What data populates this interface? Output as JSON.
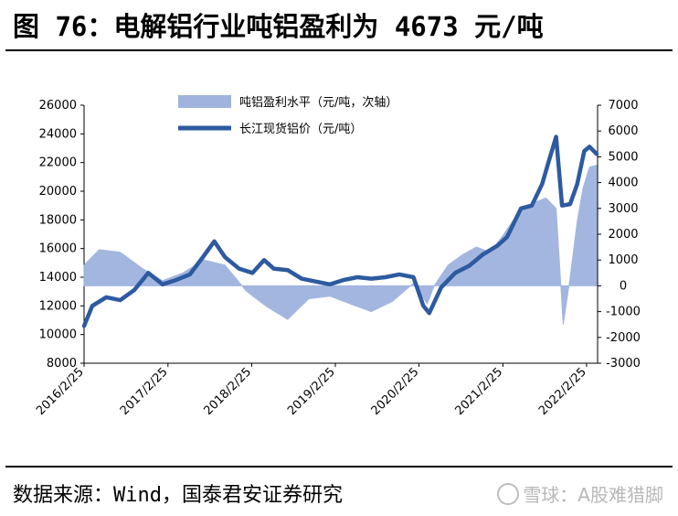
{
  "title": "图 76：电解铝行业吨铝盈利为 4673 元/吨",
  "source": "数据来源：Wind，国泰君安证券研究",
  "watermark": "雪球：A股难猎脚",
  "colors": {
    "bar": "#9fb3de",
    "line": "#2d5aa0"
  },
  "chart_data": {
    "type": "line",
    "legend": [
      "吨铝盈利水平（元/吨，次轴）",
      "长江现货铝价（元/吨）"
    ],
    "legend_placement": "top-center",
    "grid": false,
    "x_ticks": [
      "2016/2/25",
      "2017/2/25",
      "2018/2/25",
      "2019/2/25",
      "2020/2/25",
      "2021/2/25",
      "2022/2/25"
    ],
    "y_left": {
      "ticks": [
        8000,
        10000,
        12000,
        14000,
        16000,
        18000,
        20000,
        22000,
        24000,
        26000
      ],
      "range": [
        8000,
        26000
      ]
    },
    "y_right": {
      "ticks": [
        -3000,
        -2000,
        -1000,
        0,
        1000,
        2000,
        3000,
        4000,
        5000,
        6000,
        7000
      ],
      "range": [
        -3000,
        7000
      ]
    },
    "series": [
      {
        "name": "吨铝盈利水平（元/吨，次轴）",
        "type": "area",
        "axis": "right",
        "x": [
          "2016/2/25",
          "2016/5/1",
          "2016/8/1",
          "2016/11/1",
          "2017/2/1",
          "2017/5/1",
          "2017/8/1",
          "2017/11/1",
          "2018/2/1",
          "2018/5/1",
          "2018/8/1",
          "2018/11/1",
          "2019/2/1",
          "2019/5/1",
          "2019/8/1",
          "2019/11/1",
          "2020/2/1",
          "2020/4/1",
          "2020/5/1",
          "2020/7/1",
          "2020/9/1",
          "2020/11/1",
          "2021/1/1",
          "2021/3/1",
          "2021/5/1",
          "2021/7/1",
          "2021/9/1",
          "2021/10/15",
          "2021/11/15",
          "2021/12/15",
          "2022/1/15",
          "2022/2/10",
          "2022/3/10",
          "2022/4/10"
        ],
        "values": [
          800,
          1400,
          1300,
          700,
          200,
          500,
          1000,
          800,
          -200,
          -800,
          -1300,
          -500,
          -400,
          -700,
          -1000,
          -600,
          100,
          -700,
          0,
          800,
          1200,
          1500,
          1300,
          2000,
          2800,
          3200,
          3400,
          3000,
          -1500,
          300,
          2500,
          3800,
          4600,
          4673
        ]
      },
      {
        "name": "长江现货铝价（元/吨）",
        "type": "line",
        "axis": "left",
        "x": [
          "2016/2/25",
          "2016/4/1",
          "2016/6/1",
          "2016/8/1",
          "2016/10/1",
          "2016/12/1",
          "2017/2/1",
          "2017/4/1",
          "2017/6/1",
          "2017/8/1",
          "2017/9/15",
          "2017/11/1",
          "2018/1/1",
          "2018/3/1",
          "2018/4/20",
          "2018/6/1",
          "2018/8/1",
          "2018/10/1",
          "2018/12/1",
          "2019/2/1",
          "2019/4/1",
          "2019/6/1",
          "2019/8/1",
          "2019/10/1",
          "2019/12/1",
          "2020/2/1",
          "2020/3/15",
          "2020/4/10",
          "2020/6/1",
          "2020/8/1",
          "2020/10/1",
          "2020/12/1",
          "2021/2/1",
          "2021/3/15",
          "2021/5/15",
          "2021/7/1",
          "2021/8/15",
          "2021/9/15",
          "2021/10/15",
          "2021/11/10",
          "2021/12/15",
          "2022/1/15",
          "2022/2/15",
          "2022/3/10",
          "2022/4/10"
        ],
        "values": [
          10600,
          12000,
          12600,
          12400,
          13100,
          14300,
          13500,
          13800,
          14200,
          15500,
          16500,
          15400,
          14600,
          14300,
          15200,
          14600,
          14500,
          13900,
          13700,
          13500,
          13800,
          14000,
          13900,
          14000,
          14200,
          14000,
          12000,
          11500,
          13300,
          14300,
          14800,
          15600,
          16200,
          16800,
          18800,
          19000,
          20500,
          22200,
          23800,
          19000,
          19100,
          20500,
          22800,
          23100,
          22600
        ]
      }
    ]
  }
}
